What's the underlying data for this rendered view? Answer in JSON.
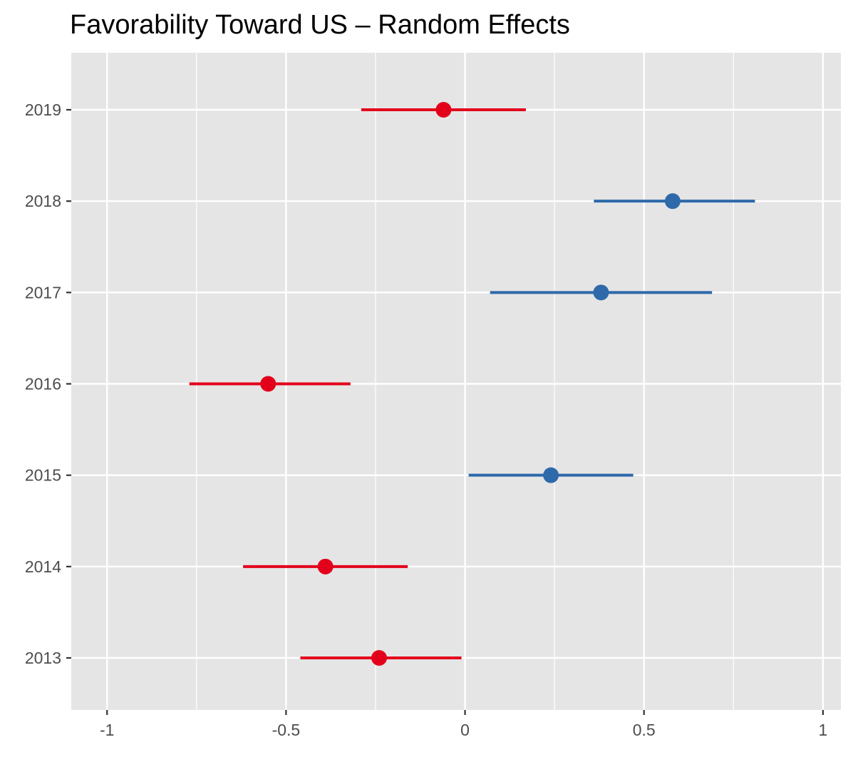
{
  "chart_data": {
    "type": "scatter",
    "title": "Favorability Toward US – Random Effects",
    "xlabel": "",
    "ylabel": "",
    "xlim": [
      -1.1,
      1.05
    ],
    "x_ticks": [
      {
        "value": -1,
        "label": "-1"
      },
      {
        "value": -0.5,
        "label": "-0.5"
      },
      {
        "value": 0,
        "label": "0"
      },
      {
        "value": 0.5,
        "label": "0.5"
      },
      {
        "value": 1,
        "label": "1"
      }
    ],
    "categories": [
      "2013",
      "2014",
      "2015",
      "2016",
      "2017",
      "2018",
      "2019"
    ],
    "points": [
      {
        "category": "2013",
        "estimate": -0.24,
        "lower": -0.46,
        "upper": -0.01,
        "color": "#e3001b"
      },
      {
        "category": "2014",
        "estimate": -0.39,
        "lower": -0.62,
        "upper": -0.16,
        "color": "#e3001b"
      },
      {
        "category": "2015",
        "estimate": 0.24,
        "lower": 0.01,
        "upper": 0.47,
        "color": "#2e69aa"
      },
      {
        "category": "2016",
        "estimate": -0.55,
        "lower": -0.77,
        "upper": -0.32,
        "color": "#e3001b"
      },
      {
        "category": "2017",
        "estimate": 0.38,
        "lower": 0.07,
        "upper": 0.69,
        "color": "#2e69aa"
      },
      {
        "category": "2018",
        "estimate": 0.58,
        "lower": 0.36,
        "upper": 0.81,
        "color": "#2e69aa"
      },
      {
        "category": "2019",
        "estimate": -0.06,
        "lower": -0.29,
        "upper": 0.17,
        "color": "#e3001b"
      }
    ],
    "panel_background": "#e5e5e5",
    "grid_color": "#ffffff",
    "grid": true,
    "legend": "none"
  }
}
